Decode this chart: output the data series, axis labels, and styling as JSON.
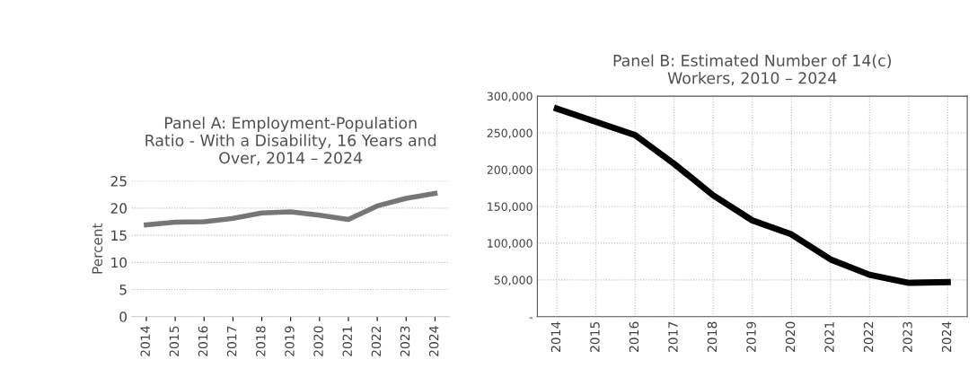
{
  "chart_data": [
    {
      "type": "line",
      "title": "Panel A: Employment-Population\nRatio - With a Disability, 16 Years and\nOver, 2014 – 2024",
      "ylabel": "Percent",
      "categories": [
        "2014",
        "2015",
        "2016",
        "2017",
        "2018",
        "2019",
        "2020",
        "2021",
        "2022",
        "2023",
        "2024"
      ],
      "series": [
        {
          "color": "#767676",
          "values": [
            16.9,
            17.4,
            17.5,
            18.1,
            19.1,
            19.3,
            18.7,
            17.9,
            20.4,
            21.8,
            22.7
          ]
        }
      ],
      "ylim": [
        0,
        25
      ],
      "yticks": [
        0,
        5,
        10,
        15,
        20,
        25
      ],
      "grid": "y",
      "marker": "none",
      "line_style": "solid"
    },
    {
      "type": "line",
      "title": "Panel B: Estimated Number of 14(c)\nWorkers, 2010 – 2024",
      "categories": [
        "2014",
        "2015",
        "2016",
        "2017",
        "2018",
        "2019",
        "2020",
        "2021",
        "2022",
        "2023",
        "2024"
      ],
      "series": [
        {
          "color": "#000000",
          "values": [
            283000,
            265000,
            247000,
            208000,
            165000,
            131000,
            112000,
            78000,
            57000,
            46000,
            47000
          ]
        }
      ],
      "ylim": [
        0,
        300000
      ],
      "yticks": [
        {
          "value": 0,
          "label": "-"
        },
        {
          "value": 50000,
          "label": "50,000"
        },
        {
          "value": 100000,
          "label": "100,000"
        },
        {
          "value": 150000,
          "label": "150,000"
        },
        {
          "value": 200000,
          "label": "200,000"
        },
        {
          "value": 250000,
          "label": "250,000"
        },
        {
          "value": 300000,
          "label": "300,000"
        }
      ],
      "grid": true,
      "marker": "none",
      "line_style": "solid"
    }
  ]
}
